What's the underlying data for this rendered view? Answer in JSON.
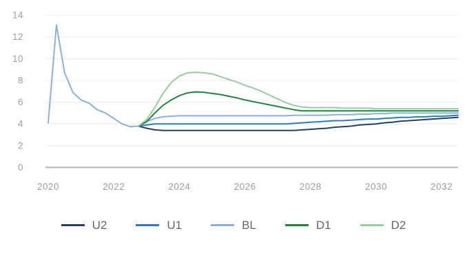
{
  "chart_data": {
    "type": "line",
    "title": "",
    "xlabel": "",
    "ylabel": "",
    "xlim": [
      2020,
      2032.5
    ],
    "ylim": [
      0,
      14
    ],
    "grid": "horizontal",
    "legend_position": "bottom",
    "x_ticks": [
      "2020",
      "2022",
      "2024",
      "2026",
      "2028",
      "2030",
      "2032"
    ],
    "x_tick_years": [
      2020,
      2022,
      2024,
      2026,
      2028,
      2030,
      2032
    ],
    "y_ticks": [
      "0",
      "2",
      "4",
      "6",
      "8",
      "10",
      "12",
      "14"
    ],
    "y_tick_values": [
      0,
      2,
      4,
      6,
      8,
      10,
      12,
      14
    ],
    "branch_start_index": 11,
    "x": [
      2020,
      2020.25,
      2020.5,
      2020.75,
      2021,
      2021.25,
      2021.5,
      2021.75,
      2022,
      2022.25,
      2022.5,
      2022.75,
      2023,
      2023.25,
      2023.5,
      2023.75,
      2024,
      2024.25,
      2024.5,
      2024.75,
      2025,
      2025.25,
      2025.5,
      2025.75,
      2026,
      2026.25,
      2026.5,
      2026.75,
      2027,
      2027.25,
      2027.5,
      2027.75,
      2028,
      2028.25,
      2028.5,
      2028.75,
      2029,
      2029.25,
      2029.5,
      2029.75,
      2030,
      2030.25,
      2030.5,
      2030.75,
      2031,
      2031.25,
      2031.5,
      2031.75,
      2032,
      2032.25,
      2032.5
    ],
    "series": [
      {
        "name": "U2",
        "color": "#243f63",
        "values": [
          4.1,
          13.1,
          8.7,
          6.9,
          6.2,
          5.9,
          5.3,
          5.0,
          4.5,
          4.0,
          3.75,
          3.8,
          3.6,
          3.45,
          3.4,
          3.4,
          3.4,
          3.4,
          3.4,
          3.4,
          3.4,
          3.4,
          3.4,
          3.4,
          3.4,
          3.4,
          3.4,
          3.4,
          3.4,
          3.4,
          3.4,
          3.45,
          3.5,
          3.55,
          3.6,
          3.7,
          3.75,
          3.8,
          3.9,
          3.95,
          4.0,
          4.1,
          4.15,
          4.25,
          4.3,
          4.35,
          4.4,
          4.45,
          4.5,
          4.55,
          4.6
        ]
      },
      {
        "name": "U1",
        "color": "#2e7ac0",
        "values": [
          4.1,
          13.1,
          8.7,
          6.9,
          6.2,
          5.9,
          5.3,
          5.0,
          4.5,
          4.0,
          3.75,
          3.8,
          3.9,
          4.0,
          4.0,
          4.0,
          4.0,
          4.0,
          4.0,
          4.0,
          4.0,
          4.0,
          4.0,
          4.0,
          4.0,
          4.0,
          4.0,
          4.0,
          4.0,
          4.0,
          4.05,
          4.1,
          4.15,
          4.2,
          4.25,
          4.3,
          4.3,
          4.35,
          4.4,
          4.45,
          4.45,
          4.5,
          4.55,
          4.6,
          4.6,
          4.65,
          4.65,
          4.7,
          4.7,
          4.75,
          4.8
        ]
      },
      {
        "name": "BL",
        "color": "#8ab1db",
        "values": [
          4.1,
          13.1,
          8.7,
          6.9,
          6.2,
          5.9,
          5.3,
          5.0,
          4.5,
          4.0,
          3.75,
          3.8,
          4.2,
          4.5,
          4.65,
          4.7,
          4.75,
          4.75,
          4.75,
          4.75,
          4.75,
          4.75,
          4.75,
          4.75,
          4.75,
          4.75,
          4.75,
          4.75,
          4.75,
          4.75,
          4.8,
          4.8,
          4.8,
          4.8,
          4.8,
          4.85,
          4.85,
          4.85,
          4.9,
          4.9,
          4.95,
          4.95,
          5.0,
          5.0,
          5.0,
          5.0,
          5.0,
          5.0,
          5.0,
          5.0,
          5.0
        ]
      },
      {
        "name": "D1",
        "color": "#1e8540",
        "values": [
          4.1,
          13.1,
          8.7,
          6.9,
          6.2,
          5.9,
          5.3,
          5.0,
          4.5,
          4.0,
          3.75,
          3.8,
          4.2,
          5.0,
          5.7,
          6.2,
          6.6,
          6.85,
          6.95,
          6.9,
          6.8,
          6.7,
          6.55,
          6.4,
          6.2,
          6.05,
          5.9,
          5.75,
          5.6,
          5.45,
          5.3,
          5.2,
          5.2,
          5.2,
          5.2,
          5.2,
          5.2,
          5.2,
          5.2,
          5.2,
          5.2,
          5.2,
          5.2,
          5.2,
          5.2,
          5.2,
          5.2,
          5.2,
          5.2,
          5.2,
          5.2
        ]
      },
      {
        "name": "D2",
        "color": "#97cba0",
        "values": [
          4.1,
          13.1,
          8.7,
          6.9,
          6.2,
          5.9,
          5.3,
          5.0,
          4.5,
          4.0,
          3.75,
          3.8,
          4.4,
          5.5,
          6.8,
          7.8,
          8.4,
          8.7,
          8.75,
          8.7,
          8.6,
          8.35,
          8.1,
          7.85,
          7.55,
          7.3,
          7.0,
          6.65,
          6.3,
          5.95,
          5.7,
          5.55,
          5.5,
          5.5,
          5.5,
          5.5,
          5.45,
          5.45,
          5.45,
          5.45,
          5.4,
          5.4,
          5.4,
          5.4,
          5.4,
          5.4,
          5.4,
          5.4,
          5.4,
          5.4,
          5.4
        ]
      }
    ]
  },
  "legend": {
    "items": [
      {
        "label": "U2"
      },
      {
        "label": "U1"
      },
      {
        "label": "BL"
      },
      {
        "label": "D1"
      },
      {
        "label": "D2"
      }
    ]
  },
  "colors": {
    "background": "#ffffff",
    "gridline": "#ececec",
    "zero_axis_line": "#b5b5b5",
    "tick_text": "#9e9e9e",
    "legend_text": "#666666"
  }
}
